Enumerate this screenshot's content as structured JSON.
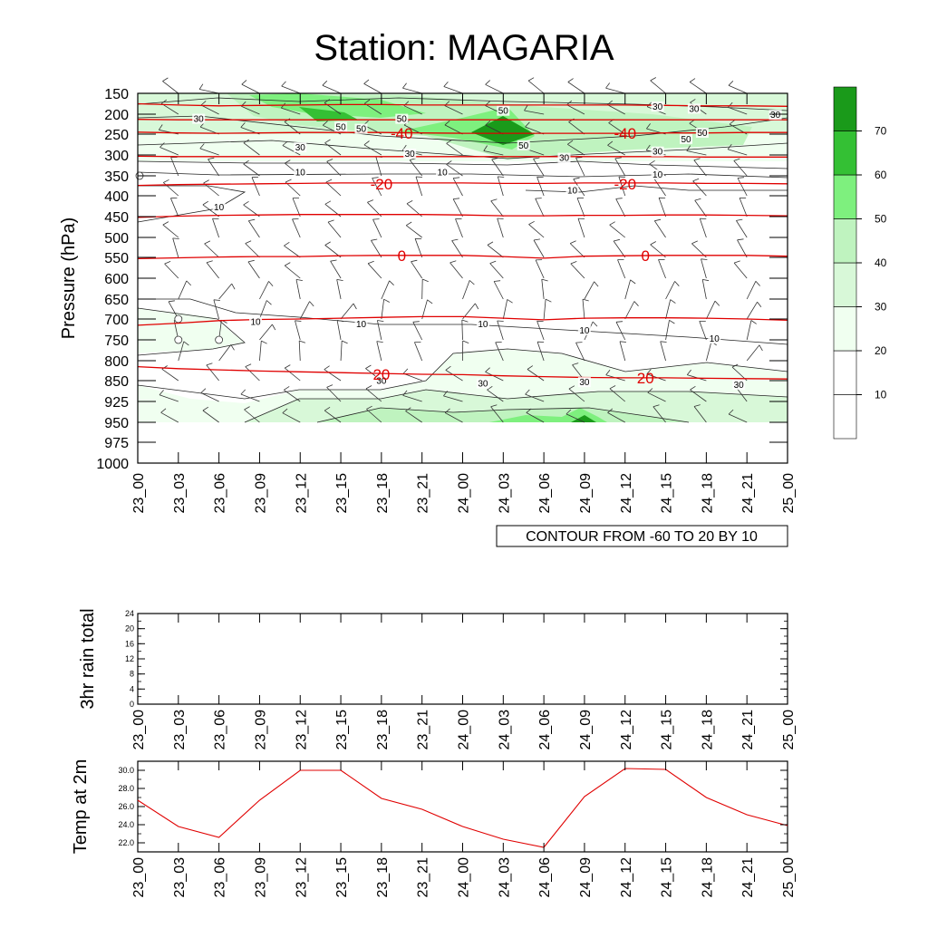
{
  "page_title": "Station: MAGARIA",
  "colors": {
    "temp": "#e00000",
    "contour": "#222222",
    "fills": [
      "#ffffff",
      "#ffffff",
      "#f0fff0",
      "#d8f8d8",
      "#bff3bf",
      "#7ef07e",
      "#34c034",
      "#1a9a1a"
    ]
  },
  "chart_data": [
    {
      "type": "contour",
      "name": "cross-section",
      "title": "Station: MAGARIA",
      "ylabel": "Pressure (hPa)",
      "x": [
        "23_00",
        "23_03",
        "23_06",
        "23_09",
        "23_12",
        "23_15",
        "23_18",
        "23_21",
        "24_00",
        "24_03",
        "24_06",
        "24_09",
        "24_12",
        "24_15",
        "24_18",
        "24_21",
        "25_00"
      ],
      "y": [
        150,
        200,
        250,
        300,
        350,
        400,
        450,
        500,
        550,
        600,
        650,
        700,
        750,
        800,
        850,
        925,
        950,
        975,
        1000
      ],
      "y_tick_labels": [
        "150",
        "200",
        "250",
        "300",
        "350",
        "400",
        "450",
        "500",
        "550",
        "600",
        "650",
        "700",
        "750",
        "800",
        "850",
        "925",
        "950",
        "975",
        "1000"
      ],
      "info_label": "CONTOUR FROM -60 TO 20 BY 10",
      "colorbar": {
        "levels": [
          10,
          20,
          30,
          40,
          50,
          60,
          70
        ],
        "labels": [
          "10",
          "20",
          "30",
          "40",
          "50",
          "60",
          "70"
        ]
      },
      "humidity_contour_labels": [
        {
          "text": "50",
          "x": 6.5,
          "y": 215
        },
        {
          "text": "50",
          "x": 9.0,
          "y": 195
        },
        {
          "text": "50",
          "x": 5.0,
          "y": 235
        },
        {
          "text": "50",
          "x": 5.5,
          "y": 240
        },
        {
          "text": "50",
          "x": 9.5,
          "y": 280
        },
        {
          "text": "50",
          "x": 13.5,
          "y": 265
        },
        {
          "text": "50",
          "x": 13.9,
          "y": 250
        },
        {
          "text": "30",
          "x": 12.8,
          "y": 185
        },
        {
          "text": "30",
          "x": 13.7,
          "y": 190
        },
        {
          "text": "30",
          "x": 15.7,
          "y": 205
        },
        {
          "text": "30",
          "x": 1.5,
          "y": 215
        },
        {
          "text": "30",
          "x": 4.0,
          "y": 285
        },
        {
          "text": "30",
          "x": 6.7,
          "y": 300
        },
        {
          "text": "30",
          "x": 10.5,
          "y": 310
        },
        {
          "text": "30",
          "x": 12.8,
          "y": 295
        },
        {
          "text": "10",
          "x": 4.0,
          "y": 345
        },
        {
          "text": "10",
          "x": 7.5,
          "y": 345
        },
        {
          "text": "10",
          "x": 12.8,
          "y": 350
        },
        {
          "text": "10",
          "x": 10.7,
          "y": 390
        },
        {
          "text": "10",
          "x": 2.0,
          "y": 430
        },
        {
          "text": "10",
          "x": 2.9,
          "y": 710
        },
        {
          "text": "10",
          "x": 5.5,
          "y": 715
        },
        {
          "text": "10",
          "x": 8.5,
          "y": 715
        },
        {
          "text": "10",
          "x": 11.0,
          "y": 730
        },
        {
          "text": "10",
          "x": 14.2,
          "y": 750
        },
        {
          "text": "30",
          "x": 6.0,
          "y": 855
        },
        {
          "text": "30",
          "x": 8.5,
          "y": 865
        },
        {
          "text": "30",
          "x": 11.0,
          "y": 860
        },
        {
          "text": "30",
          "x": 14.8,
          "y": 870
        }
      ],
      "temp_lines": [
        {
          "level": -50,
          "y": [
            175,
            178,
            180,
            179,
            178,
            177,
            177,
            178,
            178,
            178,
            178,
            178,
            178,
            179,
            180,
            180,
            181
          ]
        },
        {
          "level": -45,
          "y": [
            213,
            214,
            214,
            214,
            214,
            214,
            214,
            214,
            214,
            214,
            214,
            214,
            214,
            214,
            214,
            214,
            214
          ]
        },
        {
          "level": -40,
          "y": [
            245,
            247,
            248,
            247,
            246,
            246,
            246,
            247,
            248,
            248,
            248,
            248,
            248,
            247,
            247,
            246,
            246
          ]
        },
        {
          "level": -30,
          "y": [
            303,
            304,
            304,
            304,
            304,
            304,
            304,
            304,
            304,
            304,
            304,
            304,
            304,
            304,
            305,
            305,
            305
          ]
        },
        {
          "level": -20,
          "y": [
            374,
            372,
            371,
            370,
            369,
            368,
            368,
            368,
            368,
            369,
            369,
            368,
            368,
            368,
            369,
            369,
            370
          ]
        },
        {
          "level": -10,
          "y": [
            452,
            449,
            447,
            446,
            445,
            445,
            445,
            445,
            446,
            448,
            448,
            447,
            447,
            446,
            446,
            447,
            448
          ]
        },
        {
          "level": 0,
          "y": [
            553,
            551,
            549,
            548,
            548,
            546,
            545,
            545,
            545,
            548,
            552,
            547,
            546,
            545,
            545,
            545,
            547
          ]
        },
        {
          "level": 10,
          "y": [
            715,
            710,
            704,
            701,
            700,
            698,
            696,
            694,
            694,
            698,
            702,
            698,
            697,
            697,
            698,
            700,
            703
          ]
        },
        {
          "level": 20,
          "y": [
            815,
            820,
            823,
            826,
            828,
            830,
            832,
            834,
            835,
            838,
            840,
            842,
            843,
            843,
            844,
            845,
            846
          ]
        }
      ],
      "temp_labels": [
        {
          "text": "-40",
          "x": 6.5,
          "y": 248
        },
        {
          "text": "-40",
          "x": 12.0,
          "y": 248
        },
        {
          "text": "-20",
          "x": 6.0,
          "y": 370
        },
        {
          "text": "-20",
          "x": 12.0,
          "y": 370
        },
        {
          "text": "0",
          "x": 6.5,
          "y": 545
        },
        {
          "text": "0",
          "x": 12.5,
          "y": 545
        },
        {
          "text": "20",
          "x": 6.0,
          "y": 834
        },
        {
          "text": "20",
          "x": 12.5,
          "y": 843
        }
      ]
    },
    {
      "type": "line",
      "name": "rain",
      "ylabel": "3hr rain total",
      "x": [
        "23_00",
        "23_03",
        "23_06",
        "23_09",
        "23_12",
        "23_15",
        "23_18",
        "23_21",
        "24_00",
        "24_03",
        "24_06",
        "24_09",
        "24_12",
        "24_15",
        "24_18",
        "24_21",
        "25_00"
      ],
      "values": [
        0,
        0,
        0,
        0,
        0,
        0,
        0,
        0,
        0,
        0,
        0,
        0,
        0,
        0,
        0,
        0,
        0
      ],
      "ylim": [
        0,
        24
      ],
      "y_ticks": [
        0,
        4,
        8,
        12,
        16,
        20,
        24
      ],
      "y_tick_labels": [
        "0",
        "4",
        "8",
        "12",
        "16",
        "20",
        "24"
      ]
    },
    {
      "type": "line",
      "name": "temperature",
      "ylabel": "Temp at 2m",
      "x": [
        "23_00",
        "23_03",
        "23_06",
        "23_09",
        "23_12",
        "23_15",
        "23_18",
        "23_21",
        "24_00",
        "24_03",
        "24_06",
        "24_09",
        "24_12",
        "24_15",
        "24_18",
        "24_21",
        "25_00"
      ],
      "values": [
        26.7,
        23.8,
        22.6,
        26.7,
        30.0,
        30.0,
        26.9,
        25.7,
        23.8,
        22.4,
        21.5,
        27.1,
        30.2,
        30.1,
        27.0,
        25.1,
        23.9
      ],
      "ylim": [
        21,
        31
      ],
      "y_ticks": [
        22,
        24,
        26,
        28,
        30
      ],
      "y_tick_labels": [
        "22.0",
        "24.0",
        "26.0",
        "28.0",
        "30.0"
      ]
    }
  ]
}
